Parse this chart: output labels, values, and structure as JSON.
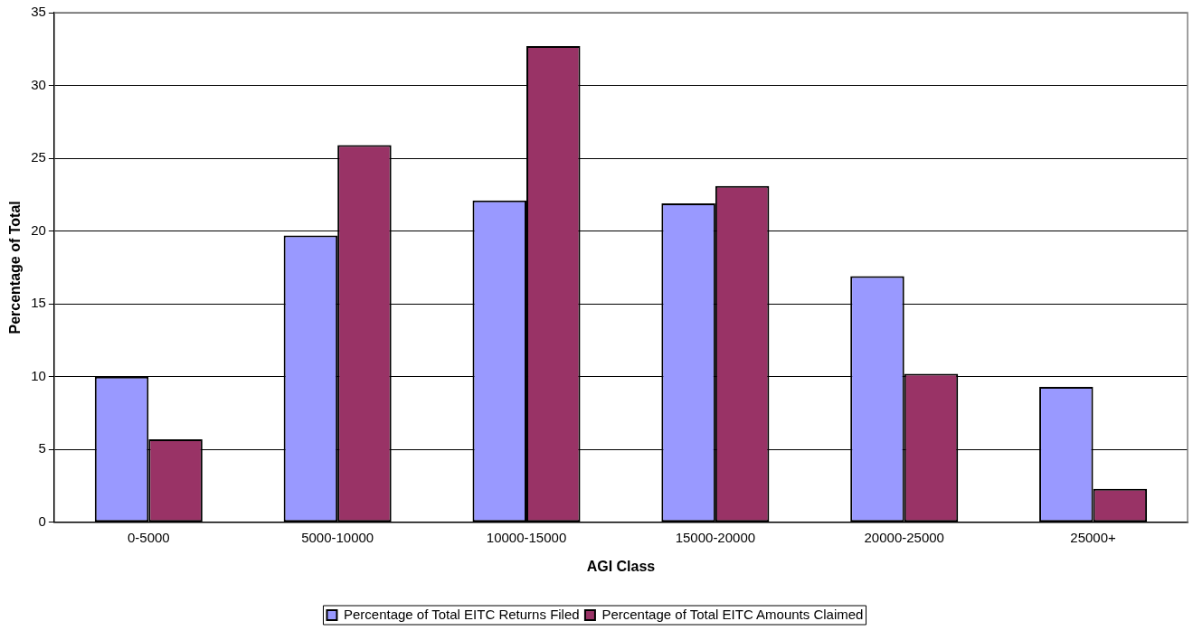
{
  "chart_data": {
    "type": "bar",
    "xlabel": "AGI Class",
    "ylabel": "Percentage of Total",
    "categories": [
      "0-5000",
      "5000-10000",
      "10000-15000",
      "15000-20000",
      "20000-25000",
      "25000+"
    ],
    "series": [
      {
        "name": "Percentage of Total EITC Returns Filed",
        "color": "#9999ff",
        "values": [
          10.0,
          19.7,
          22.1,
          21.9,
          16.9,
          9.3
        ]
      },
      {
        "name": "Percentage of Total EITC Amounts Claimed",
        "color": "#993366",
        "values": [
          5.7,
          25.9,
          32.7,
          23.1,
          10.2,
          2.3
        ]
      }
    ],
    "ylim": [
      0,
      35
    ],
    "yticks": [
      0,
      5,
      10,
      15,
      20,
      25,
      30,
      35
    ],
    "grid": "y",
    "legend": "bottom"
  }
}
